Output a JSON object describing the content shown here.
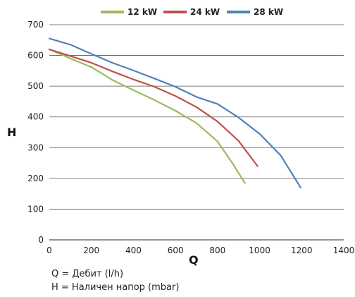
{
  "chart_data": {
    "type": "line",
    "xlabel": "Q",
    "ylabel": "H",
    "xlim": [
      0,
      1400
    ],
    "ylim": [
      0,
      700
    ],
    "x_ticks": [
      "0",
      "200",
      "400",
      "600",
      "800",
      "1000",
      "1200",
      "1400"
    ],
    "y_ticks": [
      "0",
      "100",
      "200",
      "300",
      "400",
      "500",
      "600",
      "700"
    ],
    "grid": "horizontal",
    "legend_position": "top",
    "series": [
      {
        "name": "12 kW",
        "color": "#9bbb59",
        "points": [
          [
            0,
            620
          ],
          [
            100,
            590
          ],
          [
            200,
            562
          ],
          [
            300,
            520
          ],
          [
            400,
            487
          ],
          [
            500,
            455
          ],
          [
            600,
            420
          ],
          [
            700,
            380
          ],
          [
            800,
            320
          ],
          [
            870,
            250
          ],
          [
            930,
            185
          ]
        ]
      },
      {
        "name": "24 kW",
        "color": "#c0504d",
        "points": [
          [
            0,
            620
          ],
          [
            100,
            598
          ],
          [
            200,
            576
          ],
          [
            300,
            548
          ],
          [
            400,
            522
          ],
          [
            500,
            498
          ],
          [
            600,
            468
          ],
          [
            700,
            432
          ],
          [
            800,
            385
          ],
          [
            900,
            322
          ],
          [
            990,
            240
          ]
        ]
      },
      {
        "name": "28 kW",
        "color": "#4f81bd",
        "points": [
          [
            0,
            655
          ],
          [
            100,
            635
          ],
          [
            200,
            605
          ],
          [
            300,
            576
          ],
          [
            400,
            551
          ],
          [
            500,
            525
          ],
          [
            600,
            498
          ],
          [
            700,
            465
          ],
          [
            800,
            442
          ],
          [
            900,
            398
          ],
          [
            1000,
            345
          ],
          [
            1100,
            275
          ],
          [
            1195,
            170
          ]
        ]
      }
    ]
  },
  "notes": {
    "q_line": "Q = Дебит (l/h)",
    "h_line": "H = Наличен напор (mbar)"
  }
}
